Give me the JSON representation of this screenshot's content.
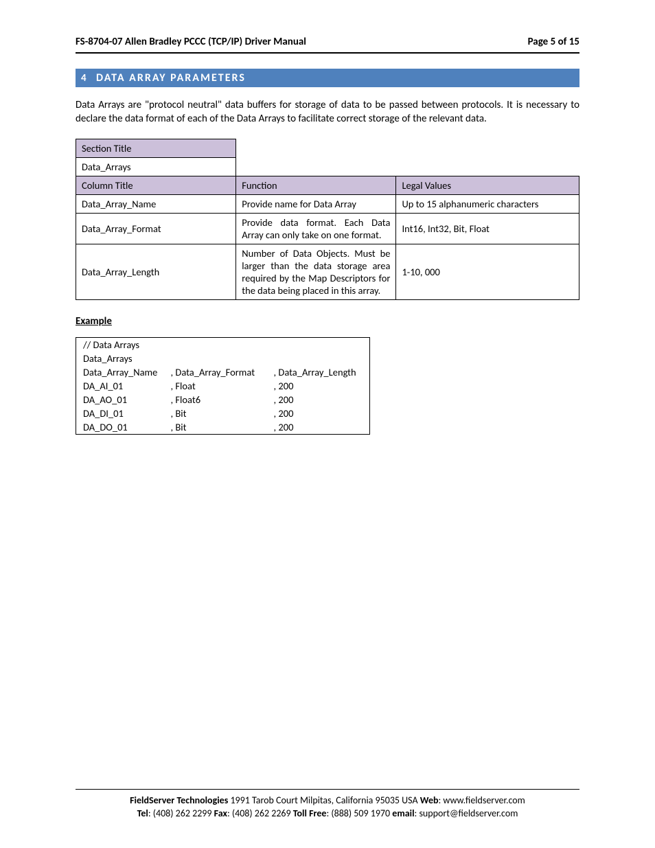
{
  "header": {
    "left": "FS-8704-07 Allen Bradley PCCC (TCP/IP) Driver Manual",
    "right": "Page 5 of 15"
  },
  "section": {
    "number": "4",
    "title": "DATA ARRAY PARAMETERS"
  },
  "body_para": "Data Arrays are \"protocol neutral\" data buffers for storage of data to be passed between protocols.  It is necessary to declare the data format of each of the Data Arrays to facilitate correct storage of the relevant data.",
  "param_table": {
    "section_title_label": "Section Title",
    "data_arrays_label": "Data_Arrays",
    "headers": {
      "col1": "Column Title",
      "col2": "Function",
      "col3": "Legal Values"
    },
    "rows": [
      {
        "c1": "Data_Array_Name",
        "c2": "Provide name for Data Array",
        "c3": "Up to 15 alphanumeric characters"
      },
      {
        "c1": "Data_Array_Format",
        "c2": "Provide data format. Each Data Array can only take on one format.",
        "c3": "Int16, Int32, Bit, Float"
      },
      {
        "c1": "Data_Array_Length",
        "c2": "Number of Data Objects. Must be larger than the data storage area required by the Map Descriptors for the data being placed in this array.",
        "c3": "1-10, 000"
      }
    ]
  },
  "example_label": "Example",
  "example_table": {
    "rows": [
      [
        "//    Data Arrays",
        "",
        ""
      ],
      [
        "Data_Arrays",
        "",
        ""
      ],
      [
        "Data_Array_Name",
        ", Data_Array_Format",
        ", Data_Array_Length"
      ],
      [
        "DA_AI_01",
        ", Float",
        ", 200"
      ],
      [
        "DA_AO_01",
        ", Float6",
        ", 200"
      ],
      [
        "DA_DI_01",
        ", Bit",
        ", 200"
      ],
      [
        "DA_DO_01",
        ", Bit",
        ", 200"
      ]
    ]
  },
  "footer": {
    "company": "FieldServer Technologies",
    "address": " 1991 Tarob Court Milpitas, California 95035 USA   ",
    "web_label": "Web",
    "web": ": www.fieldserver.com",
    "tel_label": "Tel",
    "tel": ": (408) 262 2299   ",
    "fax_label": "Fax",
    "fax": ": (408) 262 2269   ",
    "tollfree_label": "Toll Free",
    "tollfree": ": (888) 509 1970   ",
    "email_label": "email",
    "email": ": support@fieldserver.com"
  }
}
